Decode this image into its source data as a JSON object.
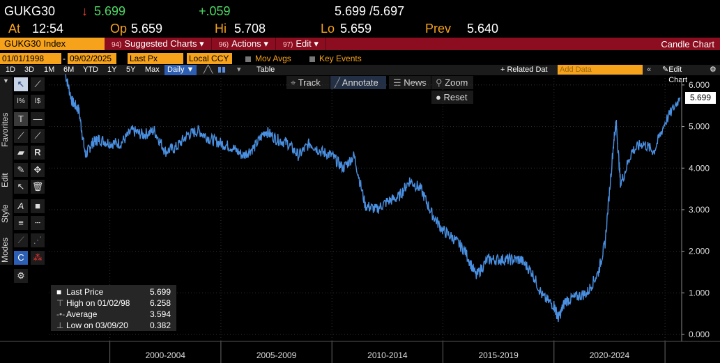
{
  "quote": {
    "ticker": "GUKG30",
    "arrow": "↓",
    "last": "5.699",
    "change": "+.059",
    "bid_ask": "5.699 /5.697",
    "at_label": "At",
    "time": "12:54",
    "open_label": "Op",
    "open": "5.659",
    "high_label": "Hi",
    "high": "5.708",
    "low_label": "Lo",
    "low": "5.659",
    "prev_label": "Prev",
    "prev": "5.640"
  },
  "command_bar": {
    "security": "GUKG30 Index",
    "items": [
      {
        "num": "94)",
        "label": "Suggested Charts",
        "caret": "▾"
      },
      {
        "num": "96)",
        "label": "Actions",
        "caret": "▾"
      },
      {
        "num": "97)",
        "label": "Edit",
        "caret": "▾"
      }
    ],
    "chart_type": "Candle Chart"
  },
  "settings": {
    "start_date": "01/01/1998",
    "dash": "-",
    "end_date": "09/02/2025",
    "field": "Last Px",
    "currency": "Local CCY",
    "mov_avgs": "Mov Avgs",
    "key_events": "Key Events"
  },
  "periods": {
    "items": [
      "1D",
      "3D",
      "1M",
      "6M",
      "YTD",
      "1Y",
      "5Y",
      "Max"
    ],
    "frequency": "Daily ▼",
    "table": "Table",
    "related": "+ Related Dat",
    "add_data_placeholder": "Add Data",
    "edit_chart": "Edit Chart"
  },
  "chart_toolbar": {
    "track": "Track",
    "annotate": "Annotate",
    "news": "News",
    "zoom": "Zoom",
    "reset": "Reset"
  },
  "side_tabs": [
    "Favorites",
    "Edit",
    "Style",
    "Modes"
  ],
  "legend": {
    "last_label": "Last Price",
    "last_value": "5.699",
    "high_label": "High on 01/02/98",
    "high_value": "6.258",
    "avg_label": "Average",
    "avg_value": "3.594",
    "low_label": "Low on 03/09/20",
    "low_value": "0.382"
  },
  "colors": {
    "series": "#4a90e2",
    "orange": "#f7a21b",
    "cmd_red": "#8b0d1f"
  },
  "chart_data": {
    "type": "line",
    "x": [
      1998.0,
      1998.3,
      1998.6,
      1998.9,
      1999.2,
      1999.5,
      2000.0,
      2000.5,
      2001.0,
      2001.5,
      2002.0,
      2002.5,
      2003.0,
      2003.5,
      2004.0,
      2004.5,
      2005.0,
      2005.5,
      2006.0,
      2006.5,
      2007.0,
      2007.5,
      2008.0,
      2008.5,
      2009.0,
      2009.5,
      2010.0,
      2010.5,
      2011.0,
      2011.5,
      2012.0,
      2012.5,
      2013.0,
      2013.5,
      2014.0,
      2014.5,
      2015.0,
      2015.5,
      2016.0,
      2016.5,
      2017.0,
      2017.5,
      2018.0,
      2018.5,
      2019.0,
      2019.5,
      2020.0,
      2020.2,
      2020.5,
      2021.0,
      2021.5,
      2022.0,
      2022.3,
      2022.7,
      2022.8,
      2023.0,
      2023.5,
      2024.0,
      2024.5,
      2025.0,
      2025.67
    ],
    "values": [
      6.26,
      5.6,
      5.4,
      4.3,
      4.6,
      4.7,
      4.6,
      4.6,
      4.9,
      4.8,
      4.9,
      4.4,
      4.5,
      4.8,
      4.9,
      4.7,
      4.6,
      4.5,
      4.3,
      4.5,
      4.9,
      4.7,
      4.6,
      4.3,
      4.6,
      4.4,
      4.3,
      4.0,
      4.3,
      3.1,
      3.0,
      3.2,
      3.3,
      3.7,
      3.5,
      2.9,
      2.5,
      2.3,
      2.0,
      1.4,
      1.8,
      1.8,
      1.8,
      1.8,
      1.5,
      0.9,
      0.7,
      0.38,
      0.8,
      0.9,
      1.0,
      1.5,
      2.2,
      4.7,
      5.1,
      3.6,
      4.4,
      4.6,
      4.4,
      5.1,
      5.699
    ],
    "xlabel": "",
    "ylabel": "",
    "x_tick_labels": [
      "2000-2004",
      "2005-2009",
      "2010-2014",
      "2015-2019",
      "2020-2024"
    ],
    "y_ticks": [
      "0.000",
      "1.000",
      "2.000",
      "3.000",
      "4.000",
      "5.000",
      "6.000"
    ],
    "ylim": [
      0,
      6.3
    ],
    "xlim": [
      1997.25,
      2025.75
    ],
    "last_tag": "5.699",
    "grid": true
  }
}
